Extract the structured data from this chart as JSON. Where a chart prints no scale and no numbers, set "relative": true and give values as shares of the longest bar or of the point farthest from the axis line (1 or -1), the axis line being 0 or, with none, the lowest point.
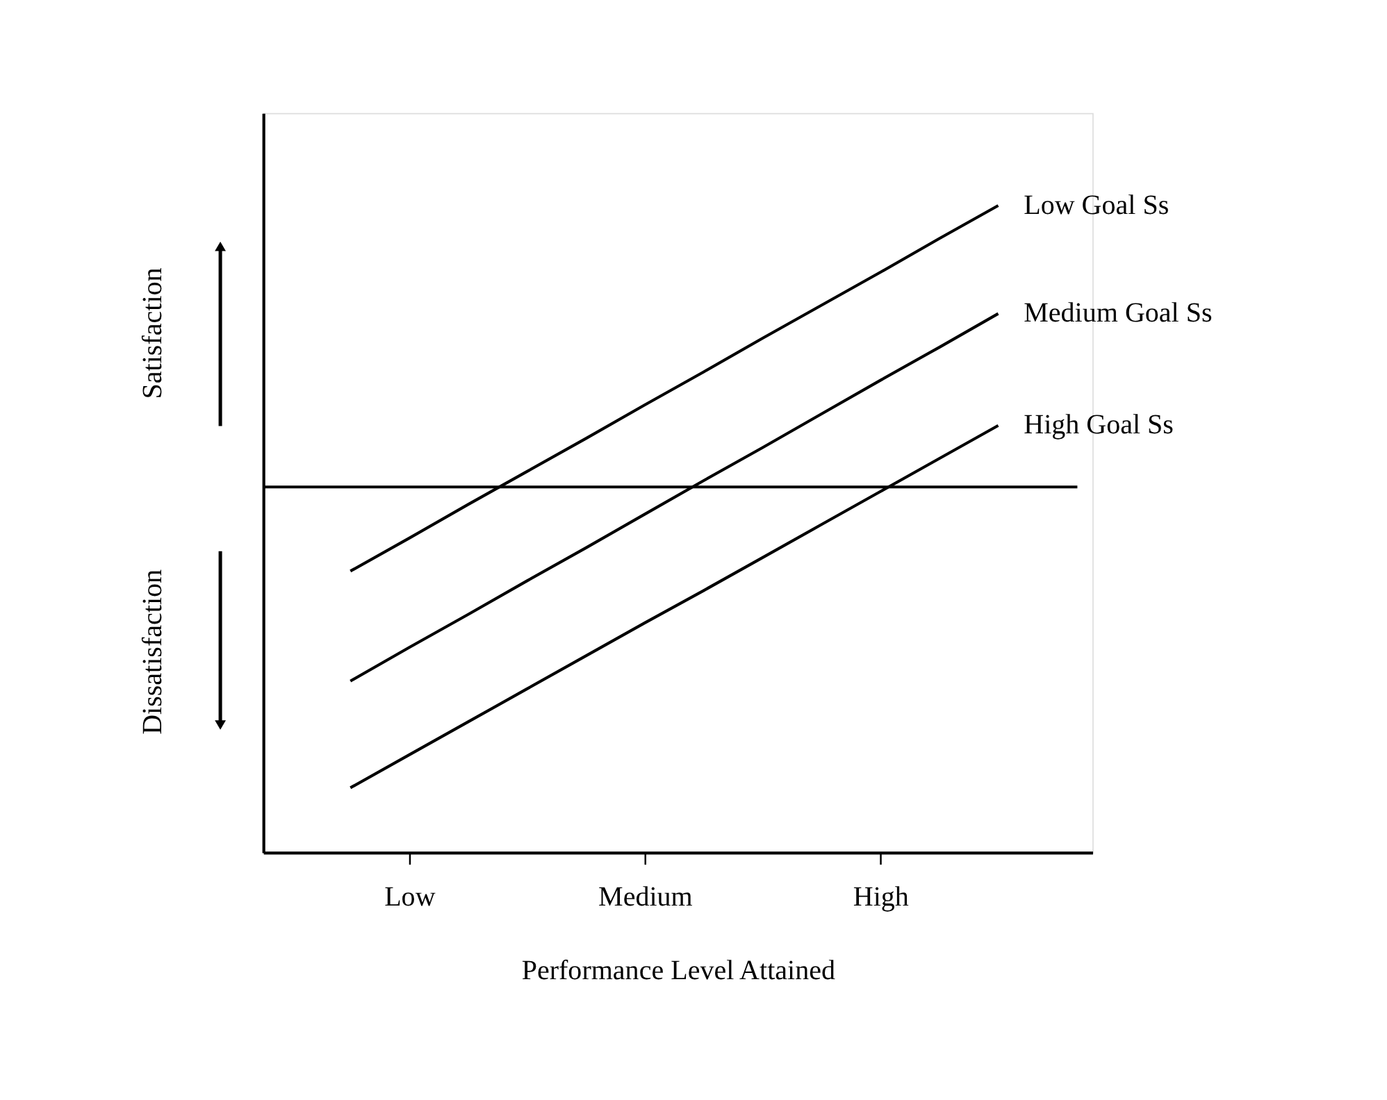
{
  "chart_data": {
    "type": "line",
    "relative": true,
    "xlabel": "Performance Level Attained",
    "categories": [
      null,
      "Low",
      null,
      null,
      null,
      "Medium",
      null,
      null,
      null,
      "High",
      null,
      null
    ],
    "series": [
      {
        "name": "Low Goal Ss",
        "color": "#000000",
        "values": [
          0.435,
          0.486,
          0.538,
          0.589,
          0.64,
          0.692,
          0.743,
          0.795,
          0.846,
          0.897,
          0.949,
          1
        ]
      },
      {
        "name": "Medium Goal Ss",
        "color": "#000000",
        "values": [
          0.265,
          0.317,
          0.368,
          0.42,
          0.471,
          0.523,
          0.575,
          0.626,
          0.678,
          0.73,
          0.781,
          0.833
        ]
      },
      {
        "name": "High Goal Ss",
        "color": "#000000",
        "values": [
          0.1,
          0.151,
          0.202,
          0.253,
          0.304,
          0.355,
          0.405,
          0.456,
          0.507,
          0.558,
          0.609,
          0.66
        ]
      }
    ],
    "ref_lines": [
      {
        "axis": "y",
        "value": 0.565,
        "color": "#000000"
      }
    ],
    "annotations": [
      "Satisfaction",
      "Dissatisfaction"
    ],
    "legend": false,
    "grid": false,
    "marker": "none",
    "line_style": "solid"
  }
}
